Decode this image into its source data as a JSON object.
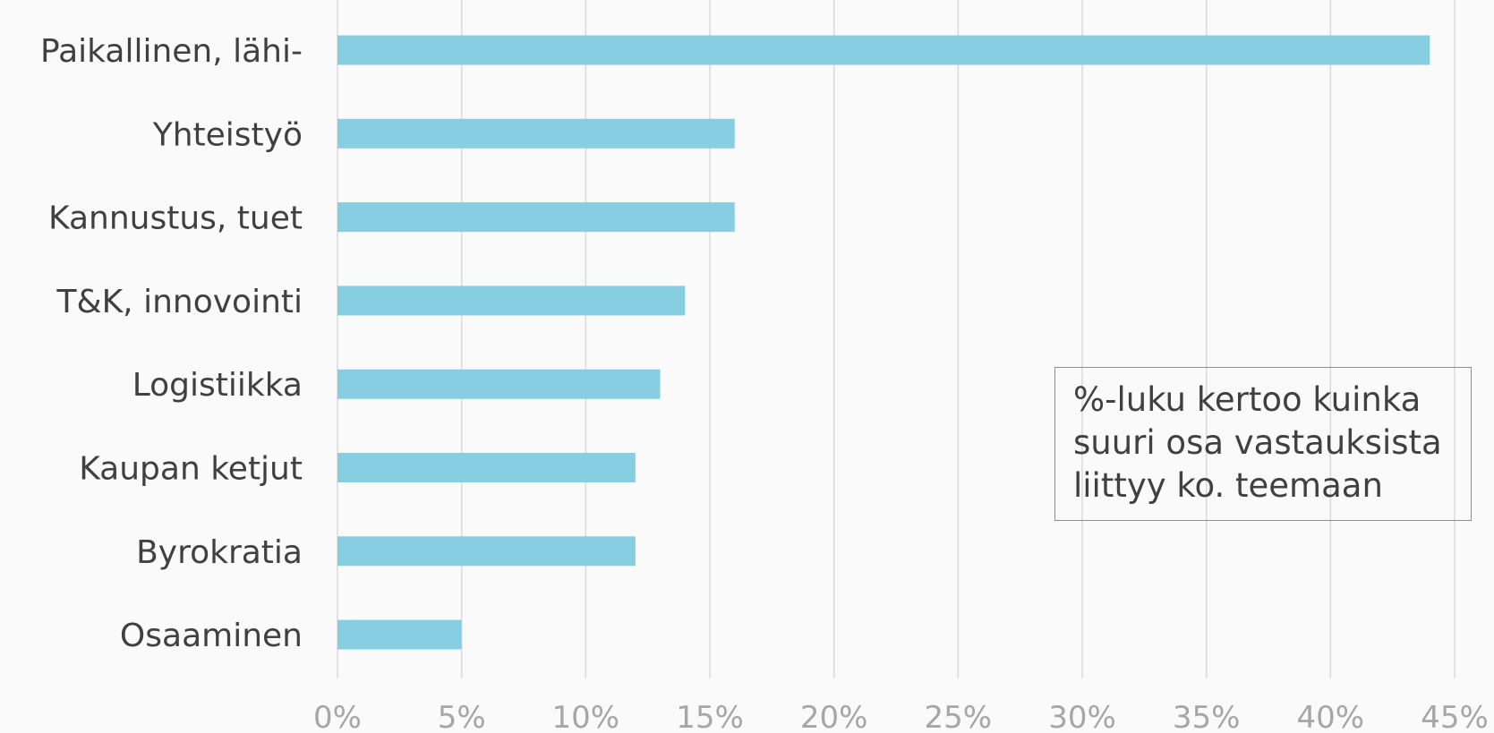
{
  "chart_data": {
    "type": "bar",
    "orientation": "horizontal",
    "categories": [
      "Paikallinen, lähi-",
      "Yhteistyö",
      "Kannustus, tuet",
      "T&K, innovointi",
      "Logistiikka",
      "Kaupan ketjut",
      "Byrokratia",
      "Osaaminen"
    ],
    "values": [
      44,
      16,
      16,
      14,
      13,
      12,
      12,
      5
    ],
    "value_unit": "%",
    "xlim": [
      0,
      45
    ],
    "x_ticks": [
      "0%",
      "5%",
      "10%",
      "15%",
      "20%",
      "25%",
      "30%",
      "35%",
      "40%",
      "45%"
    ],
    "grid": "vertical",
    "bar_color": "#87cee3",
    "grid_color": "#d9d9d9",
    "title": "",
    "xlabel": "",
    "ylabel": ""
  },
  "annotation": {
    "lines": [
      "%-luku kertoo kuinka",
      "suuri osa vastauksista",
      "liittyy ko. teemaan"
    ]
  }
}
